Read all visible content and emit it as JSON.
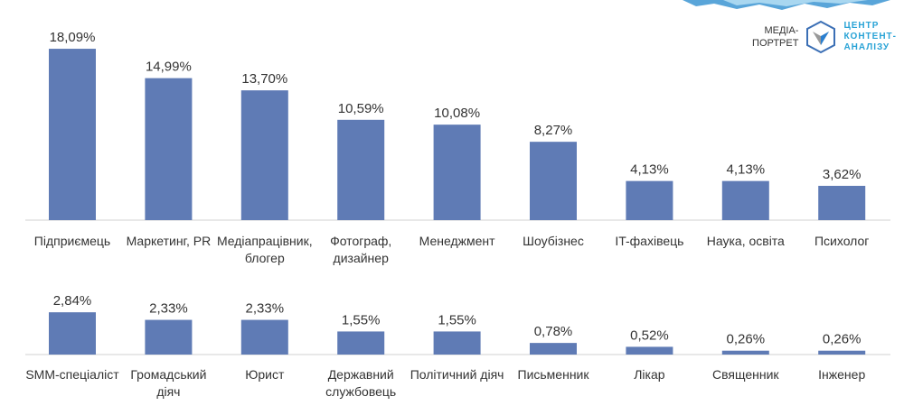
{
  "logo": {
    "line1": "МЕДІА-",
    "line2": "ПОРТРЕТ",
    "brand1": "ЦЕНТР",
    "brand2": "КОНТЕНТ-",
    "brand3": "АНАЛІЗУ"
  },
  "colors": {
    "bar": "#5f7bb5",
    "axis": "#d0d0d0"
  },
  "chart_data": [
    {
      "type": "bar",
      "categories": [
        [
          "Підприємець"
        ],
        [
          "Маркетинг, PR"
        ],
        [
          "Медіапрацівник,",
          "блогер"
        ],
        [
          "Фотограф,",
          "дизайнер"
        ],
        [
          "Менеджмент"
        ],
        [
          "Шоубізнес"
        ],
        [
          "IT-фахівець"
        ],
        [
          "Наука, освіта"
        ],
        [
          "Психолог"
        ]
      ],
      "values": [
        18.09,
        14.99,
        13.7,
        10.59,
        10.08,
        8.27,
        4.13,
        4.13,
        3.62
      ],
      "labels": [
        "18,09%",
        "14,99%",
        "13,70%",
        "10,59%",
        "10,08%",
        "8,27%",
        "4,13%",
        "4,13%",
        "3,62%"
      ]
    },
    {
      "type": "bar",
      "categories": [
        [
          "SMM-спеціаліст"
        ],
        [
          "Громадський",
          "діяч"
        ],
        [
          "Юрист"
        ],
        [
          "Державний",
          "службовець"
        ],
        [
          "Політичний діяч"
        ],
        [
          "Письменник"
        ],
        [
          "Лікар"
        ],
        [
          "Священник"
        ],
        [
          "Інженер"
        ]
      ],
      "values": [
        2.84,
        2.33,
        2.33,
        1.55,
        1.55,
        0.78,
        0.52,
        0.26,
        0.26
      ],
      "labels": [
        "2,84%",
        "2,33%",
        "2,33%",
        "1,55%",
        "1,55%",
        "0,78%",
        "0,52%",
        "0,26%",
        "0,26%"
      ]
    }
  ]
}
